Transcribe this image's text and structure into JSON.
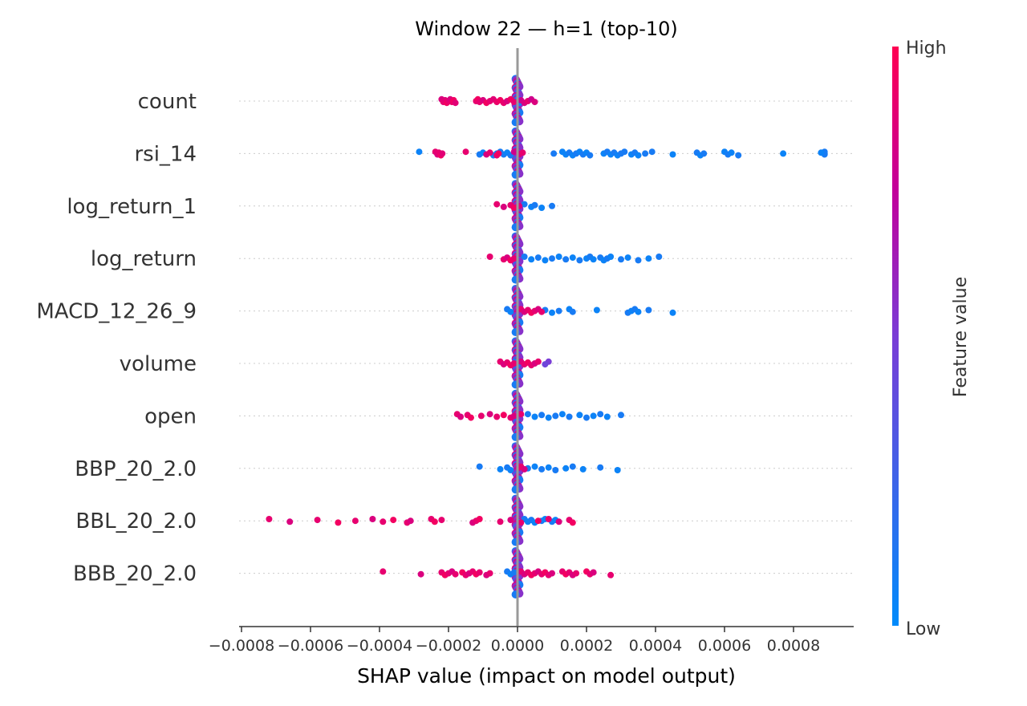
{
  "chart_data": {
    "type": "scatter",
    "title": "Window 22 — h=1 (top-10)",
    "xlabel": "SHAP value (impact on model output)",
    "xlim": [
      -0.0008,
      0.00097
    ],
    "xticks": [
      -0.0008,
      -0.0006,
      -0.0004,
      -0.0002,
      0.0,
      0.0002,
      0.0004,
      0.0006,
      0.0008
    ],
    "xtick_labels": [
      "−0.0008",
      "−0.0006",
      "−0.0004",
      "−0.0002",
      "0.0000",
      "0.0002",
      "0.0004",
      "0.0006",
      "0.0008"
    ],
    "colorbar": {
      "title": "Feature value",
      "high_label": "High",
      "low_label": "Low",
      "low_color": "#008bfb",
      "high_color": "#ff0052"
    },
    "features": [
      {
        "name": "count",
        "high": [
          [
            -0.00022,
            0.85
          ],
          [
            -0.000215,
            0.9
          ],
          [
            -0.00021,
            0.88
          ],
          [
            -0.000205,
            0.95
          ],
          [
            -0.0002,
            0.9
          ],
          [
            -0.000195,
            0.85
          ],
          [
            -0.00019,
            0.92
          ],
          [
            -0.000185,
            0.95
          ],
          [
            -0.00018,
            0.88
          ],
          [
            -0.00012,
            0.9
          ],
          [
            -0.000115,
            0.95
          ],
          [
            -0.00011,
            0.9
          ],
          [
            -0.0001,
            0.85
          ],
          [
            -9e-05,
            0.95
          ],
          [
            -8e-05,
            0.9
          ],
          [
            -7e-05,
            0.88
          ],
          [
            -6e-05,
            0.92
          ],
          [
            -5e-05,
            0.95
          ],
          [
            -4e-05,
            0.9
          ],
          [
            -3e-05,
            0.85
          ],
          [
            -2e-05,
            0.95
          ],
          [
            -1e-05,
            0.9
          ],
          [
            1e-05,
            0.8
          ],
          [
            2e-05,
            0.85
          ],
          [
            3e-05,
            0.9
          ],
          [
            4e-05,
            0.8
          ],
          [
            5e-05,
            0.85
          ]
        ],
        "low": [
          [
            0.0,
            0.1
          ],
          [
            2e-06,
            0.05
          ],
          [
            3e-06,
            0.15
          ],
          [
            4e-06,
            0.1
          ],
          [
            -2e-06,
            0.05
          ],
          [
            5e-06,
            0.2
          ],
          [
            1e-05,
            0.1
          ]
        ]
      },
      {
        "name": "rsi_14",
        "high": [
          [
            -0.000238,
            0.9
          ],
          [
            -0.000232,
            0.85
          ],
          [
            -0.000228,
            0.9
          ],
          [
            -0.000222,
            0.95
          ],
          [
            -0.000218,
            0.88
          ],
          [
            -0.00015,
            0.9
          ],
          [
            -9e-05,
            0.85
          ],
          [
            -8e-05,
            0.9
          ],
          [
            -6e-05,
            0.9
          ],
          [
            -5.5e-05,
            0.95
          ],
          [
            -1e-05,
            0.8
          ],
          [
            5e-06,
            0.85
          ],
          [
            1.5e-05,
            0.9
          ]
        ],
        "low": [
          [
            -0.000285,
            0.05
          ],
          [
            -0.00011,
            0.1
          ],
          [
            -0.0001,
            0.05
          ],
          [
            -7e-05,
            0.1
          ],
          [
            -6e-05,
            0.05
          ],
          [
            -5e-05,
            0.1
          ],
          [
            -4e-05,
            0.1
          ],
          [
            -3e-05,
            0.05
          ],
          [
            -2e-05,
            0.1
          ],
          [
            0.000105,
            0.1
          ],
          [
            0.00013,
            0.05
          ],
          [
            0.00014,
            0.05
          ],
          [
            0.00015,
            0.1
          ],
          [
            0.00016,
            0.05
          ],
          [
            0.00017,
            0.1
          ],
          [
            0.00018,
            0.05
          ],
          [
            0.00019,
            0.1
          ],
          [
            0.0002,
            0.05
          ],
          [
            0.00021,
            0.1
          ],
          [
            0.00025,
            0.05
          ],
          [
            0.00026,
            0.1
          ],
          [
            0.00027,
            0.05
          ],
          [
            0.00028,
            0.1
          ],
          [
            0.00029,
            0.05
          ],
          [
            0.0003,
            0.1
          ],
          [
            0.00031,
            0.1
          ],
          [
            0.00033,
            0.05
          ],
          [
            0.00034,
            0.1
          ],
          [
            0.00035,
            0.05
          ],
          [
            0.00037,
            0.1
          ],
          [
            0.00039,
            0.1
          ],
          [
            0.00045,
            0.05
          ],
          [
            0.00052,
            0.1
          ],
          [
            0.00053,
            0.05
          ],
          [
            0.00054,
            0.1
          ],
          [
            0.0006,
            0.05
          ],
          [
            0.00061,
            0.1
          ],
          [
            0.00062,
            0.05
          ],
          [
            0.00064,
            0.1
          ],
          [
            0.00077,
            0.05
          ],
          [
            0.00089,
            0.1
          ],
          [
            0.00089,
            0.1
          ],
          [
            0.00088,
            0.05
          ]
        ]
      },
      {
        "name": "log_return_1",
        "high": [
          [
            -6e-05,
            0.9
          ],
          [
            -4e-05,
            0.85
          ],
          [
            -2e-05,
            0.9
          ],
          [
            -1e-05,
            0.95
          ],
          [
            5e-06,
            0.85
          ]
        ],
        "low": [
          [
            2e-05,
            0.1
          ],
          [
            4e-05,
            0.05
          ],
          [
            5e-05,
            0.1
          ],
          [
            7e-05,
            0.05
          ],
          [
            0.0001,
            0.1
          ]
        ]
      },
      {
        "name": "log_return",
        "high": [
          [
            -8e-05,
            0.9
          ],
          [
            -4e-05,
            0.9
          ],
          [
            -3e-05,
            0.85
          ],
          [
            -2e-05,
            0.95
          ],
          [
            -1e-05,
            0.9
          ]
        ],
        "low": [
          [
            2e-05,
            0.1
          ],
          [
            4e-05,
            0.05
          ],
          [
            6e-05,
            0.1
          ],
          [
            8e-05,
            0.05
          ],
          [
            0.0001,
            0.1
          ],
          [
            0.00012,
            0.05
          ],
          [
            0.00014,
            0.1
          ],
          [
            0.00016,
            0.05
          ],
          [
            0.00018,
            0.1
          ],
          [
            0.0002,
            0.05
          ],
          [
            0.00021,
            0.1
          ],
          [
            0.00022,
            0.05
          ],
          [
            0.00024,
            0.1
          ],
          [
            0.00025,
            0.05
          ],
          [
            0.00026,
            0.1
          ],
          [
            0.00027,
            0.05
          ],
          [
            0.0003,
            0.1
          ],
          [
            0.00032,
            0.05
          ],
          [
            0.00035,
            0.1
          ],
          [
            0.00038,
            0.05
          ],
          [
            0.00041,
            0.1
          ]
        ]
      },
      {
        "name": "MACD_12_26_9",
        "high": [
          [
            1e-05,
            0.9
          ],
          [
            2e-05,
            0.85
          ],
          [
            3e-05,
            0.9
          ],
          [
            4e-05,
            0.95
          ],
          [
            5e-05,
            0.9
          ],
          [
            6e-05,
            0.85
          ],
          [
            7e-05,
            0.9
          ]
        ],
        "low": [
          [
            -3e-05,
            0.1
          ],
          [
            -2e-05,
            0.05
          ],
          [
            8e-05,
            0.1
          ],
          [
            0.0001,
            0.05
          ],
          [
            0.00012,
            0.1
          ],
          [
            0.00015,
            0.05
          ],
          [
            0.00016,
            0.1
          ],
          [
            0.00023,
            0.05
          ],
          [
            0.00032,
            0.1
          ],
          [
            0.00033,
            0.05
          ],
          [
            0.00034,
            0.1
          ],
          [
            0.00035,
            0.05
          ],
          [
            0.00038,
            0.1
          ],
          [
            0.00045,
            0.05
          ]
        ]
      },
      {
        "name": "volume",
        "high": [
          [
            -5e-05,
            0.9
          ],
          [
            -4e-05,
            0.85
          ],
          [
            -3e-05,
            0.9
          ],
          [
            -2e-05,
            0.95
          ],
          [
            -1e-05,
            0.9
          ],
          [
            1e-05,
            0.85
          ],
          [
            2e-05,
            0.9
          ],
          [
            3e-05,
            0.95
          ],
          [
            4e-05,
            0.9
          ],
          [
            5e-05,
            0.85
          ],
          [
            6e-05,
            0.9
          ]
        ],
        "low": [
          [
            -5e-06,
            0.1
          ],
          [
            0.0,
            0.05
          ],
          [
            5e-06,
            0.1
          ]
        ],
        "mid": [
          [
            9e-05,
            0.5
          ],
          [
            8e-05,
            0.45
          ]
        ]
      },
      {
        "name": "open",
        "high": [
          [
            -0.000175,
            0.9
          ],
          [
            -0.000165,
            0.85
          ],
          [
            -0.000145,
            0.9
          ],
          [
            -0.000135,
            0.95
          ],
          [
            -0.000105,
            0.9
          ],
          [
            -8e-05,
            0.85
          ],
          [
            -6e-05,
            0.9
          ],
          [
            -4e-05,
            0.95
          ],
          [
            -2e-05,
            0.9
          ],
          [
            -1e-05,
            0.85
          ],
          [
            1e-05,
            0.9
          ]
        ],
        "low": [
          [
            3e-05,
            0.1
          ],
          [
            5e-05,
            0.05
          ],
          [
            7e-05,
            0.1
          ],
          [
            9e-05,
            0.05
          ],
          [
            0.00011,
            0.1
          ],
          [
            0.00013,
            0.05
          ],
          [
            0.00015,
            0.1
          ],
          [
            0.00018,
            0.05
          ],
          [
            0.0002,
            0.1
          ],
          [
            0.00022,
            0.05
          ],
          [
            0.00024,
            0.1
          ],
          [
            0.00026,
            0.05
          ],
          [
            0.0003,
            0.1
          ]
        ]
      },
      {
        "name": "BBP_20_2.0",
        "high": [
          [
            1e-05,
            0.9
          ],
          [
            2e-05,
            0.85
          ],
          [
            5e-06,
            0.9
          ]
        ],
        "low": [
          [
            -0.00011,
            0.1
          ],
          [
            -5e-05,
            0.05
          ],
          [
            -3e-05,
            0.1
          ],
          [
            -2e-05,
            0.05
          ],
          [
            3e-05,
            0.1
          ],
          [
            5e-05,
            0.05
          ],
          [
            7e-05,
            0.1
          ],
          [
            9e-05,
            0.05
          ],
          [
            0.00011,
            0.1
          ],
          [
            0.00014,
            0.05
          ],
          [
            0.00016,
            0.1
          ],
          [
            0.00019,
            0.05
          ],
          [
            0.00024,
            0.1
          ],
          [
            0.00029,
            0.05
          ]
        ]
      },
      {
        "name": "BBL_20_2.0",
        "high": [
          [
            -0.00072,
            0.9
          ],
          [
            -0.00066,
            0.85
          ],
          [
            -0.00058,
            0.9
          ],
          [
            -0.00052,
            0.95
          ],
          [
            -0.00047,
            0.9
          ],
          [
            -0.00042,
            0.85
          ],
          [
            -0.00039,
            0.9
          ],
          [
            -0.00036,
            0.95
          ],
          [
            -0.00032,
            0.9
          ],
          [
            -0.00031,
            0.85
          ],
          [
            -0.00025,
            0.9
          ],
          [
            -0.00024,
            0.95
          ],
          [
            -0.00022,
            0.9
          ],
          [
            -0.00013,
            0.85
          ],
          [
            -0.00012,
            0.9
          ],
          [
            -0.00011,
            0.95
          ],
          [
            -5e-05,
            0.9
          ],
          [
            -2e-05,
            0.85
          ],
          [
            1e-05,
            0.9
          ],
          [
            6e-05,
            0.95
          ],
          [
            9e-05,
            0.9
          ],
          [
            0.00012,
            0.85
          ],
          [
            0.00015,
            0.9
          ],
          [
            0.00016,
            0.95
          ]
        ],
        "low": [
          [
            2e-05,
            0.1
          ],
          [
            3e-05,
            0.05
          ],
          [
            4e-05,
            0.1
          ],
          [
            5e-05,
            0.05
          ],
          [
            7e-05,
            0.1
          ],
          [
            8e-05,
            0.05
          ],
          [
            0.0001,
            0.1
          ],
          [
            0.00011,
            0.05
          ]
        ]
      },
      {
        "name": "BBB_20_2.0",
        "high": [
          [
            -0.00039,
            0.9
          ],
          [
            -0.00028,
            0.85
          ],
          [
            -0.00022,
            0.9
          ],
          [
            -0.00021,
            0.95
          ],
          [
            -0.0002,
            0.9
          ],
          [
            -0.00019,
            0.85
          ],
          [
            -0.00018,
            0.9
          ],
          [
            -0.00016,
            0.95
          ],
          [
            -0.00015,
            0.9
          ],
          [
            -0.00014,
            0.85
          ],
          [
            -0.00013,
            0.9
          ],
          [
            -0.00012,
            0.95
          ],
          [
            -0.00011,
            0.9
          ],
          [
            -9e-05,
            0.85
          ],
          [
            -8e-05,
            0.9
          ],
          [
            1e-05,
            0.9
          ],
          [
            2e-05,
            0.85
          ],
          [
            3e-05,
            0.9
          ],
          [
            4e-05,
            0.95
          ],
          [
            5e-05,
            0.9
          ],
          [
            6e-05,
            0.85
          ],
          [
            7e-05,
            0.9
          ],
          [
            8e-05,
            0.95
          ],
          [
            9e-05,
            0.9
          ],
          [
            0.0001,
            0.85
          ],
          [
            0.00013,
            0.9
          ],
          [
            0.00014,
            0.95
          ],
          [
            0.00015,
            0.9
          ],
          [
            0.00016,
            0.85
          ],
          [
            0.00017,
            0.9
          ],
          [
            0.0002,
            0.95
          ],
          [
            0.00021,
            0.9
          ],
          [
            0.00022,
            0.85
          ],
          [
            0.00027,
            0.9
          ]
        ],
        "low": [
          [
            -3e-05,
            0.1
          ],
          [
            -2e-05,
            0.05
          ],
          [
            -1e-05,
            0.1
          ]
        ]
      }
    ]
  }
}
